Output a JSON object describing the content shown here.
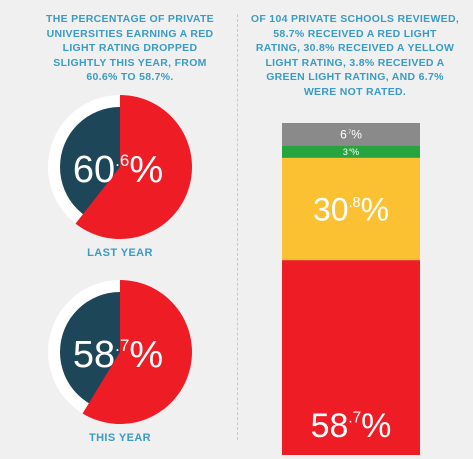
{
  "left": {
    "caption": "THE PERCENTAGE OF PRIVATE UNIVERSITIES EARNING A RED LIGHT RATING DROPPED SLIGHTLY THIS YEAR, FROM 60.6% TO 58.7%."
  },
  "right": {
    "caption": "OF 104 PRIVATE SCHOOLS REVIEWED, 58.7% RECEIVED A RED LIGHT RATING, 30.8% RECEIVED A YELLOW LIGHT RATING, 3.8% RECEIVED A GREEN LIGHT RATING, AND 6.7% WERE NOT RATED."
  },
  "colors": {
    "red": "#ee1c25",
    "yellow": "#fcc133",
    "green": "#27a33f",
    "gray": "#8a8a8a",
    "navy": "#1e4659",
    "white": "#ffffff",
    "accent": "#3a9bc4"
  },
  "chart_data": [
    {
      "type": "pie",
      "id": "last-year",
      "label": "LAST YEAR",
      "value": 60.6,
      "display": {
        "whole": "60",
        "decimal": ".6",
        "unit": "%"
      }
    },
    {
      "type": "pie",
      "id": "this-year",
      "label": "THIS YEAR",
      "value": 58.7,
      "display": {
        "whole": "58",
        "decimal": ".7",
        "unit": "%"
      }
    },
    {
      "type": "bar",
      "id": "ratings-stacked",
      "stacked": true,
      "segments": [
        {
          "name": "red",
          "value": 58.7,
          "whole": "58",
          "decimal": ".7",
          "unit": "%"
        },
        {
          "name": "yellow",
          "value": 30.8,
          "whole": "30",
          "decimal": ".8",
          "unit": "%"
        },
        {
          "name": "green",
          "value": 3.8,
          "whole": "3",
          "decimal": ".8",
          "unit": "%"
        },
        {
          "name": "not-rated",
          "value": 6.7,
          "whole": "6",
          "decimal": ".7",
          "unit": "%"
        }
      ]
    }
  ]
}
